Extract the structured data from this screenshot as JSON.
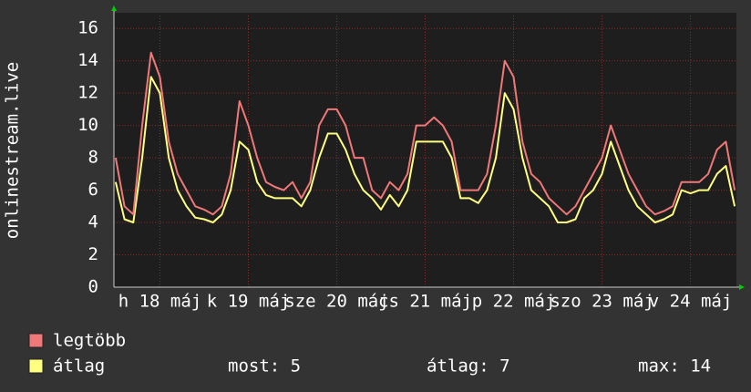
{
  "chart_data": {
    "type": "line",
    "y_label": "onlinestream.live",
    "x": [
      17.5,
      17.6,
      17.7,
      17.8,
      17.9,
      18.0,
      18.1,
      18.2,
      18.3,
      18.4,
      18.5,
      18.6,
      18.7,
      18.8,
      18.9,
      19.0,
      19.1,
      19.2,
      19.3,
      19.4,
      19.5,
      19.6,
      19.7,
      19.8,
      19.9,
      20.0,
      20.1,
      20.2,
      20.3,
      20.4,
      20.5,
      20.6,
      20.7,
      20.8,
      20.9,
      21.0,
      21.1,
      21.2,
      21.3,
      21.4,
      21.5,
      21.6,
      21.7,
      21.8,
      21.9,
      22.0,
      22.1,
      22.2,
      22.3,
      22.4,
      22.5,
      22.6,
      22.7,
      22.8,
      22.9,
      23.0,
      23.1,
      23.2,
      23.3,
      23.4,
      23.5,
      23.6,
      23.7,
      23.8,
      23.9,
      24.0,
      24.1,
      24.2,
      24.3,
      24.4,
      24.5
    ],
    "series": [
      {
        "name": "legtöbb",
        "color": "#f07878",
        "values": [
          8,
          5,
          4.5,
          10,
          14.5,
          13,
          9,
          7,
          6,
          5,
          4.8,
          4.5,
          5,
          7,
          11.5,
          10,
          8,
          6.5,
          6.2,
          6,
          6.5,
          5.5,
          6.5,
          10,
          11,
          11,
          10,
          8,
          8,
          6,
          5.5,
          6.5,
          6,
          7,
          10,
          10,
          10.5,
          10,
          9,
          6,
          6,
          6,
          7,
          10,
          14,
          13,
          9,
          7,
          6.5,
          5.5,
          5,
          4.5,
          5,
          6,
          7,
          8,
          10,
          8.5,
          7,
          6,
          5,
          4.5,
          4.7,
          5,
          6.5,
          6.5,
          6.5,
          7,
          8.5,
          9,
          6
        ]
      },
      {
        "name": "átlag",
        "color": "#ffff80",
        "values": [
          6.5,
          4.2,
          4,
          8,
          13,
          12,
          8,
          6,
          5,
          4.3,
          4.2,
          4,
          4.5,
          6,
          9,
          8.5,
          6.5,
          5.7,
          5.5,
          5.5,
          5.5,
          5,
          6,
          8,
          9.5,
          9.5,
          8.5,
          7,
          6,
          5.5,
          4.8,
          5.7,
          5,
          6,
          9,
          9,
          9,
          9,
          8,
          5.5,
          5.5,
          5.2,
          6,
          8,
          12,
          11,
          8,
          6,
          5.5,
          5,
          4,
          4,
          4.2,
          5.5,
          6,
          7,
          9,
          7.5,
          6,
          5,
          4.5,
          4,
          4.2,
          4.5,
          6,
          5.8,
          6,
          6,
          7,
          7.5,
          5
        ]
      }
    ],
    "xlim": [
      17.48,
      24.52
    ],
    "xticks": [
      {
        "value": 18,
        "label": "h 18 máj"
      },
      {
        "value": 19,
        "label": "k 19 máj"
      },
      {
        "value": 20,
        "label": "sze 20 máj"
      },
      {
        "value": 21,
        "label": "cs 21 máj"
      },
      {
        "value": 22,
        "label": "p 22 máj"
      },
      {
        "value": 23,
        "label": "szo 23 máj"
      },
      {
        "value": 24,
        "label": "v 24 máj"
      }
    ],
    "ylim": [
      0,
      16.8
    ],
    "yticks": [
      0,
      2,
      4,
      6,
      8,
      10,
      12,
      14,
      16
    ],
    "grid": true,
    "stats": [
      "most: 5",
      "átlag: 7",
      "max: 14"
    ]
  }
}
